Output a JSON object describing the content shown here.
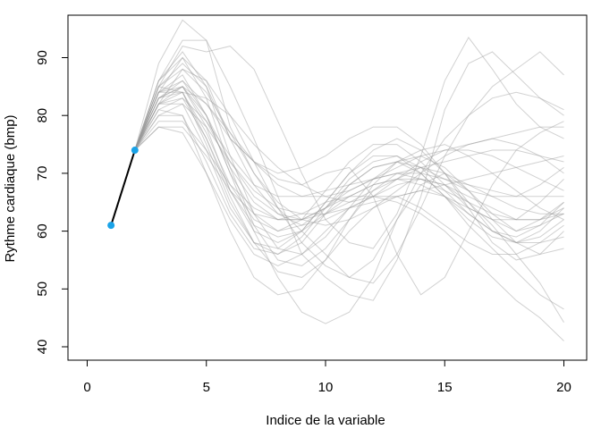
{
  "chart_data": {
    "type": "line",
    "title": "",
    "xlabel": "Indice de la variable",
    "ylabel": "Rythme cardiaque (bmp)",
    "xlim": [
      0,
      20
    ],
    "ylim": [
      40,
      95
    ],
    "x_ticks": [
      "0",
      "5",
      "10",
      "15",
      "20"
    ],
    "y_ticks": [
      "40",
      "50",
      "60",
      "70",
      "80",
      "90"
    ],
    "grid": false,
    "legend": "none",
    "colors": {
      "trajectories": "#9a9a9a",
      "observed_line": "#000000",
      "observed_points": "#1aa3e8"
    },
    "observed": {
      "x": [
        1,
        2
      ],
      "y": [
        61,
        74
      ]
    },
    "trajectories_x": [
      2,
      3,
      4,
      5,
      6,
      7,
      8,
      9,
      10,
      11,
      12,
      13,
      14,
      15,
      16,
      17,
      18,
      19,
      20
    ],
    "trajectories": [
      [
        74,
        89,
        96.5,
        93,
        78,
        70,
        64,
        60,
        56,
        52,
        51,
        56,
        64,
        73,
        80,
        85,
        88,
        91,
        87
      ],
      [
        74,
        86,
        93,
        93,
        85,
        76,
        66,
        56,
        52,
        49,
        48,
        55,
        66,
        81,
        89,
        91,
        87,
        83,
        80
      ],
      [
        74,
        85,
        92,
        91,
        92,
        88,
        79,
        70,
        62,
        58,
        57,
        63,
        73,
        86,
        93.5,
        88,
        82,
        78,
        76
      ],
      [
        74,
        84,
        90,
        86,
        76,
        72,
        69,
        68,
        70,
        71,
        66,
        56,
        49,
        52,
        60,
        68,
        74,
        77,
        79
      ],
      [
        74,
        83,
        85,
        80,
        70,
        60,
        52,
        46,
        44,
        46,
        52,
        62,
        68,
        70,
        67,
        63,
        60,
        62,
        65
      ],
      [
        74,
        82,
        88,
        86,
        80,
        72,
        64,
        58,
        54,
        52,
        55,
        62,
        70,
        76,
        80,
        83,
        84,
        83,
        81
      ],
      [
        74,
        85,
        84,
        83,
        80,
        75,
        71,
        68,
        66,
        65,
        66,
        69,
        72,
        74,
        75,
        76,
        77,
        78,
        78
      ],
      [
        74,
        84,
        85,
        78,
        67,
        60,
        58,
        60,
        65,
        70,
        74,
        76,
        74,
        70,
        65,
        60,
        58,
        59,
        62
      ],
      [
        74,
        80,
        80,
        70,
        60,
        52,
        49,
        50,
        55,
        62,
        68,
        72,
        74,
        75,
        73,
        70,
        67,
        64,
        62
      ],
      [
        74,
        82,
        84,
        76,
        66,
        58,
        53,
        52,
        55,
        60,
        64,
        66,
        67,
        66,
        64,
        62,
        60,
        61,
        63
      ],
      [
        74,
        83,
        86,
        82,
        76,
        72,
        70,
        71,
        73,
        76,
        78,
        78,
        75,
        70,
        64,
        58,
        55,
        56,
        60
      ],
      [
        74,
        81,
        83,
        79,
        73,
        68,
        66,
        66,
        67,
        68,
        69,
        70,
        70,
        69,
        68,
        67,
        66,
        66,
        66
      ],
      [
        74,
        84,
        86,
        80,
        72,
        66,
        63,
        62,
        63,
        65,
        67,
        69,
        71,
        72,
        73,
        74,
        74,
        73,
        72
      ],
      [
        74,
        78,
        77,
        70,
        62,
        56,
        54,
        56,
        60,
        64,
        66,
        66,
        64,
        61,
        58,
        56,
        56,
        58,
        61
      ],
      [
        74,
        82,
        82,
        74,
        64,
        58,
        57,
        60,
        65,
        70,
        73,
        73,
        70,
        66,
        62,
        59,
        58,
        60,
        64
      ],
      [
        74,
        85,
        88,
        84,
        77,
        70,
        65,
        62,
        61,
        62,
        64,
        67,
        70,
        73,
        75,
        76,
        75,
        73,
        70
      ],
      [
        74,
        83,
        84,
        77,
        68,
        62,
        60,
        62,
        67,
        72,
        75,
        75,
        72,
        68,
        64,
        62,
        62,
        65,
        69
      ],
      [
        74,
        80,
        82,
        78,
        72,
        67,
        64,
        63,
        63,
        64,
        65,
        66,
        67,
        68,
        69,
        70,
        71,
        72,
        73
      ],
      [
        74,
        86,
        90,
        83,
        71,
        61,
        55,
        54,
        57,
        62,
        67,
        70,
        71,
        70,
        68,
        66,
        64,
        63,
        63
      ],
      [
        74,
        84,
        87,
        80,
        70,
        63,
        60,
        61,
        64,
        68,
        71,
        72,
        71,
        69,
        67,
        66,
        66,
        68,
        71
      ],
      [
        74,
        82,
        85,
        82,
        77,
        72,
        68,
        66,
        66,
        67,
        69,
        71,
        73,
        74,
        74,
        73,
        71,
        69,
        67
      ],
      [
        74,
        86,
        91,
        85,
        73,
        63,
        57,
        56,
        59,
        64,
        69,
        72,
        73,
        71,
        67,
        62,
        58,
        56,
        57
      ],
      [
        74,
        81,
        80,
        72,
        63,
        57,
        56,
        59,
        64,
        69,
        72,
        73,
        71,
        67,
        63,
        60,
        59,
        61,
        65
      ],
      [
        74,
        84,
        84,
        75,
        65,
        58,
        56,
        58,
        63,
        68,
        71,
        72,
        70,
        66,
        61,
        57,
        53,
        49,
        46.5
      ],
      [
        74,
        79,
        79,
        74,
        68,
        64,
        62,
        62,
        64,
        66,
        68,
        69,
        69,
        68,
        66,
        64,
        62,
        62,
        63
      ],
      [
        74,
        83,
        85,
        79,
        71,
        65,
        62,
        62,
        64,
        67,
        69,
        70,
        69,
        67,
        65,
        63,
        62,
        62,
        64
      ],
      [
        74,
        85,
        89,
        85,
        76,
        68,
        63,
        61,
        62,
        64,
        66,
        68,
        69,
        68,
        65,
        61,
        56,
        51,
        44.2
      ],
      [
        74,
        82,
        83,
        76,
        67,
        61,
        59,
        60,
        63,
        66,
        68,
        69,
        68,
        66,
        63,
        60,
        58,
        58,
        59
      ],
      [
        74,
        78,
        78,
        73,
        67,
        63,
        62,
        63,
        65,
        66,
        66,
        65,
        63,
        60,
        56,
        52,
        48,
        45,
        41
      ]
    ]
  }
}
